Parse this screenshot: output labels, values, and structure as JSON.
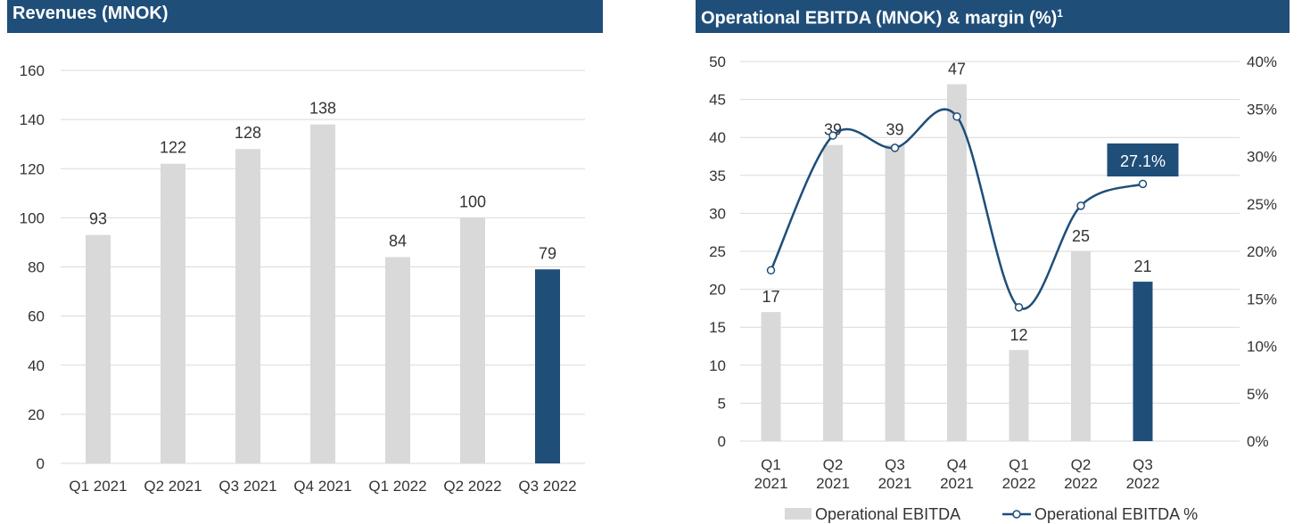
{
  "chart_data": [
    {
      "type": "bar",
      "title": "Revenues (MNOK)",
      "categories": [
        "Q1 2021",
        "Q2 2021",
        "Q3 2021",
        "Q4 2021",
        "Q1 2022",
        "Q2 2022",
        "Q3 2022"
      ],
      "values": [
        93,
        122,
        128,
        138,
        84,
        100,
        79
      ],
      "ylim": [
        0,
        160
      ],
      "yticks": [
        0,
        20,
        40,
        60,
        80,
        100,
        120,
        140,
        160
      ],
      "grid": true,
      "colors": {
        "default": "#d9d9d9",
        "highlight": "#1f4e79"
      },
      "highlight_index": 6
    },
    {
      "type": "bar",
      "title": "Operational EBITDA (MNOK) & margin (%)",
      "title_footnote": "1",
      "categories": [
        [
          "Q1",
          "2021"
        ],
        [
          "Q2",
          "2021"
        ],
        [
          "Q3",
          "2021"
        ],
        [
          "Q4",
          "2021"
        ],
        [
          "Q1",
          "2022"
        ],
        [
          "Q2",
          "2022"
        ],
        [
          "Q3",
          "2022"
        ]
      ],
      "series": [
        {
          "name": "Operational EBITDA",
          "type": "bar",
          "axis": "left",
          "values": [
            17,
            39,
            39,
            47,
            12,
            25,
            21
          ],
          "labels": [
            "17",
            "39",
            "39",
            "47",
            "12",
            "25",
            "21"
          ]
        },
        {
          "name": "Operational EBITDA %",
          "type": "line",
          "axis": "right",
          "values": [
            18.0,
            32.2,
            30.9,
            34.2,
            14.1,
            24.8,
            27.1
          ]
        }
      ],
      "ylim": [
        0,
        50
      ],
      "yticks": [
        0,
        5,
        10,
        15,
        20,
        25,
        30,
        35,
        40,
        45,
        50
      ],
      "y2lim": [
        0,
        40
      ],
      "y2ticks": [
        "0%",
        "5%",
        "10%",
        "15%",
        "20%",
        "25%",
        "30%",
        "35%",
        "40%"
      ],
      "callout": "27.1%",
      "grid": true,
      "legend": "bottom",
      "colors": {
        "default": "#d9d9d9",
        "highlight": "#1f4e79",
        "line": "#1f4e79"
      },
      "highlight_index": 6
    }
  ]
}
